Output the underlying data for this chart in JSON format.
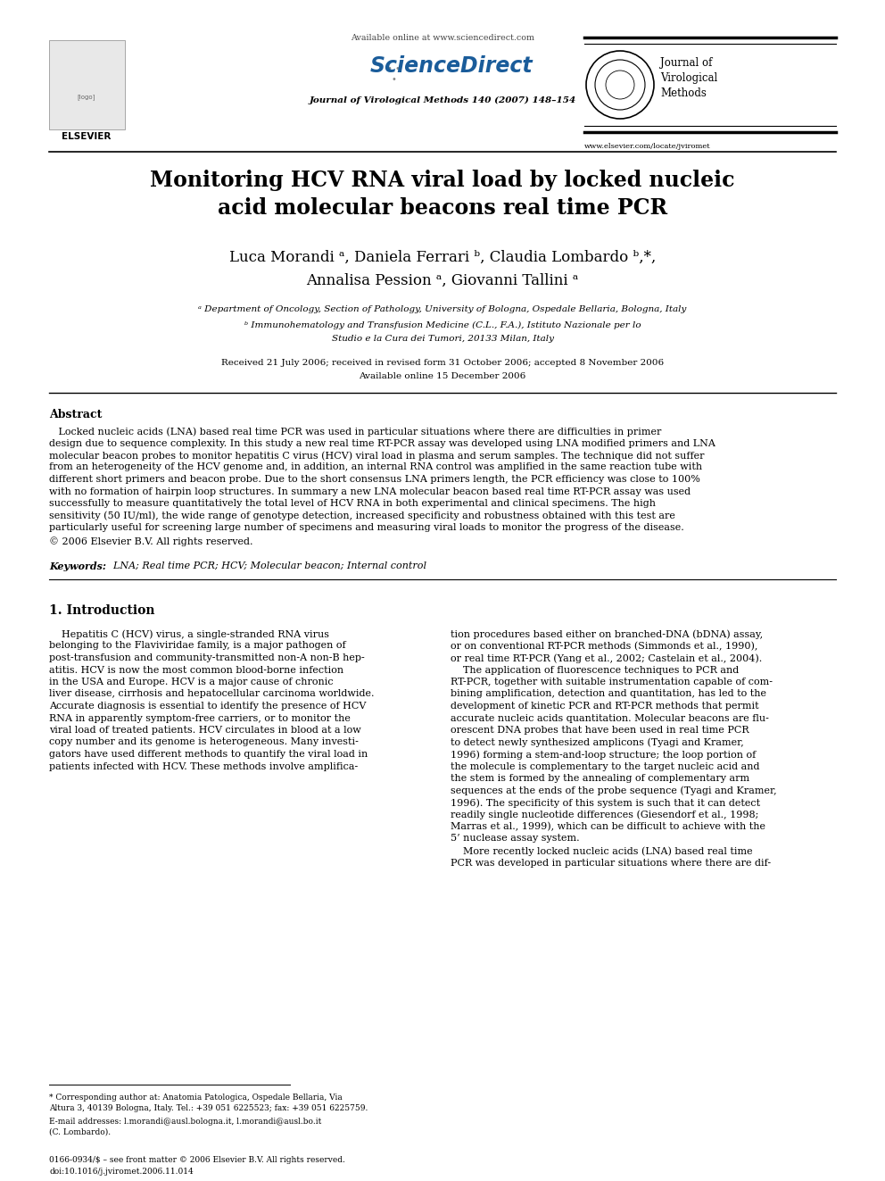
{
  "bg_color": "#ffffff",
  "page_width": 9.92,
  "page_height": 13.23,
  "header_available": "Available online at www.sciencedirect.com",
  "header_journal_ref": "Journal of Virological Methods 140 (2007) 148–154",
  "header_website": "www.elsevier.com/locate/jviromet",
  "title": "Monitoring HCV RNA viral load by locked nucleic\nacid molecular beacons real time PCR",
  "authors_line1": "Luca Morandi ᵃ, Daniela Ferrari ᵇ, Claudia Lombardo ᵇ,*,",
  "authors_line2": "Annalisa Pession ᵃ, Giovanni Tallini ᵃ",
  "affil_a": "ᵃ Department of Oncology, Section of Pathology, University of Bologna, Ospedale Bellaria, Bologna, Italy",
  "affil_b1": "ᵇ Immunohematology and Transfusion Medicine (C.L., F.A.), Istituto Nazionale per lo",
  "affil_b2": "Studio e la Cura dei Tumori, 20133 Milan, Italy",
  "received1": "Received 21 July 2006; received in revised form 31 October 2006; accepted 8 November 2006",
  "received2": "Available online 15 December 2006",
  "abstract_title": "Abstract",
  "abstract_body": "Locked nucleic acids (LNA) based real time PCR was used in particular situations where there are difficulties in primer design due to sequence complexity. In this study a new real time RT-PCR assay was developed using LNA modified primers and LNA molecular beacon probes to monitor hepatitis C virus (HCV) viral load in plasma and serum samples. The technique did not suffer from an heterogeneity of the HCV genome and, in addition, an internal RNA control was amplified in the same reaction tube with different short primers and beacon probe. Due to the short consensus LNA primers length, the PCR efficiency was close to 100% with no formation of hairpin loop structures. In summary a new LNA molecular beacon based real time RT-PCR assay was used successfully to measure quantitatively the total level of HCV RNA in both experimental and clinical specimens. The high sensitivity (50 IU/ml), the wide range of genotype detection, increased specificity and robustness obtained with this test are particularly useful for screening large number of specimens and measuring viral loads to monitor the progress of the disease.",
  "abstract_copy": "© 2006 Elsevier B.V. All rights reserved.",
  "keywords_label": "Keywords:",
  "keywords_text": "LNA; Real time PCR; HCV; Molecular beacon; Internal control",
  "section1_title": "1. Introduction",
  "col1_lines": [
    "    Hepatitis C (HCV) virus, a single-stranded RNA virus",
    "belonging to the Flaviviridae family, is a major pathogen of",
    "post-transfusion and community-transmitted non-A non-B hep-",
    "atitis. HCV is now the most common blood-borne infection",
    "in the USA and Europe. HCV is a major cause of chronic",
    "liver disease, cirrhosis and hepatocellular carcinoma worldwide.",
    "Accurate diagnosis is essential to identify the presence of HCV",
    "RNA in apparently symptom-free carriers, or to monitor the",
    "viral load of treated patients. HCV circulates in blood at a low",
    "copy number and its genome is heterogeneous. Many investi-",
    "gators have used different methods to quantify the viral load in",
    "patients infected with HCV. These methods involve amplifica-"
  ],
  "col2_lines": [
    "tion procedures based either on branched-DNA (bDNA) assay,",
    "or on conventional RT-PCR methods (Simmonds et al., 1990),",
    "or real time RT-PCR (Yang et al., 2002; Castelain et al., 2004).",
    "    The application of fluorescence techniques to PCR and",
    "RT-PCR, together with suitable instrumentation capable of com-",
    "bining amplification, detection and quantitation, has led to the",
    "development of kinetic PCR and RT-PCR methods that permit",
    "accurate nucleic acids quantitation. Molecular beacons are flu-",
    "orescent DNA probes that have been used in real time PCR",
    "to detect newly synthesized amplicons (Tyagi and Kramer,",
    "1996) forming a stem-and-loop structure; the loop portion of",
    "the molecule is complementary to the target nucleic acid and",
    "the stem is formed by the annealing of complementary arm",
    "sequences at the ends of the probe sequence (Tyagi and Kramer,",
    "1996). The specificity of this system is such that it can detect",
    "readily single nucleotide differences (Giesendorf et al., 1998;",
    "Marras et al., 1999), which can be difficult to achieve with the",
    "5’ nuclease assay system.",
    "    More recently locked nucleic acids (LNA) based real time",
    "PCR was developed in particular situations where there are dif-"
  ],
  "footnote_star": "* Corresponding author at: Anatomia Patologica, Ospedale Bellaria, Via",
  "footnote_star2": "Altura 3, 40139 Bologna, Italy. Tel.: +39 051 6225523; fax: +39 051 6225759.",
  "footnote_email": "E-mail addresses: l.morandi@ausl.bologna.it, l.morandi@ausl.bo.it",
  "footnote_email2": "(C. Lombardo).",
  "footer1": "0166-0934/$ – see front matter © 2006 Elsevier B.V. All rights reserved.",
  "footer2": "doi:10.1016/j.jviromet.2006.11.014",
  "ref_color": "#1155cc"
}
